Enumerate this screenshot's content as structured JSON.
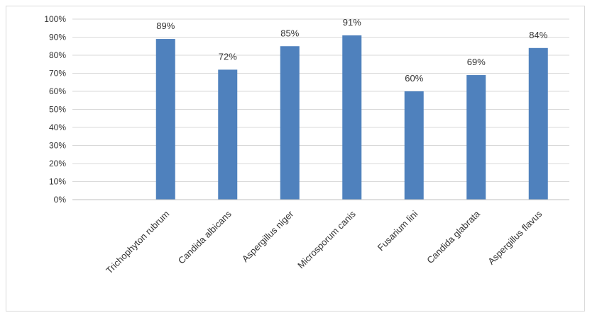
{
  "chart_data": {
    "type": "bar",
    "categories": [
      "",
      "Trichophyton rubrum",
      "Candida albicans",
      "Aspergillus niger",
      "Microsporum canis",
      "Fusarium lini",
      "Candida glabrata",
      "Aspergillus flavus"
    ],
    "values": [
      null,
      0.89,
      0.72,
      0.85,
      0.91,
      0.6,
      0.69,
      0.84
    ],
    "data_labels": [
      "",
      "89%",
      "72%",
      "85%",
      "91%",
      "60%",
      "69%",
      "84%"
    ],
    "y_ticks": [
      "0%",
      "10%",
      "20%",
      "30%",
      "40%",
      "50%",
      "60%",
      "70%",
      "80%",
      "90%",
      "100%"
    ],
    "ylim": [
      0,
      1
    ],
    "grid": true,
    "legend": "none",
    "colors": {
      "bar": "#4f81bd",
      "grid": "#d9d9d9",
      "text": "#333333"
    }
  }
}
